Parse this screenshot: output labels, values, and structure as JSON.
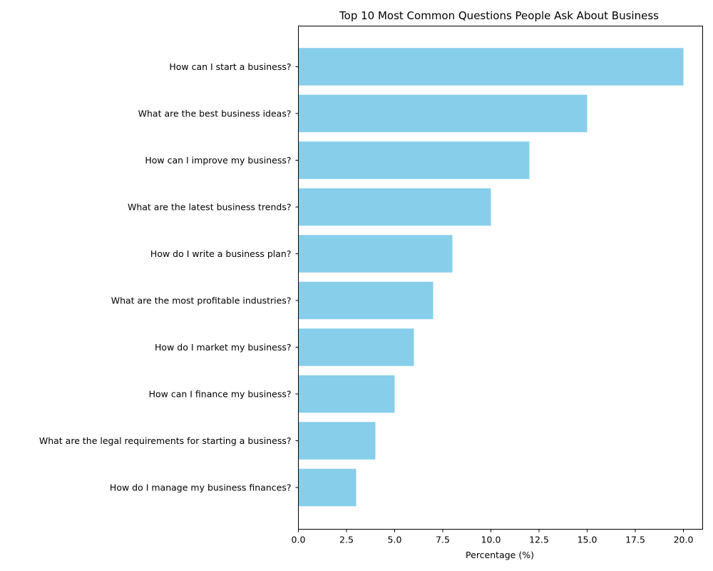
{
  "chart_data": {
    "type": "bar",
    "orientation": "horizontal",
    "title": "Top 10 Most Common Questions People Ask About Business",
    "xlabel": "Percentage (%)",
    "ylabel": "",
    "categories": [
      "How can I start a business?",
      "What are the best business ideas?",
      "How can I improve my business?",
      "What are the latest business trends?",
      "How do I write a business plan?",
      "What are the most profitable industries?",
      "How do I market my business?",
      "How can I finance my business?",
      "What are the legal requirements for starting a business?",
      "How do I manage my business finances?"
    ],
    "values": [
      20,
      15,
      12,
      10,
      8,
      7,
      6,
      5,
      4,
      3
    ],
    "xlim": [
      0,
      21
    ],
    "xticks": [
      0.0,
      2.5,
      5.0,
      7.5,
      10.0,
      12.5,
      15.0,
      17.5,
      20.0
    ],
    "xtick_labels": [
      "0.0",
      "2.5",
      "5.0",
      "7.5",
      "10.0",
      "12.5",
      "15.0",
      "17.5",
      "20.0"
    ],
    "bar_color": "#87ceeb",
    "grid": false,
    "legend": "none"
  }
}
